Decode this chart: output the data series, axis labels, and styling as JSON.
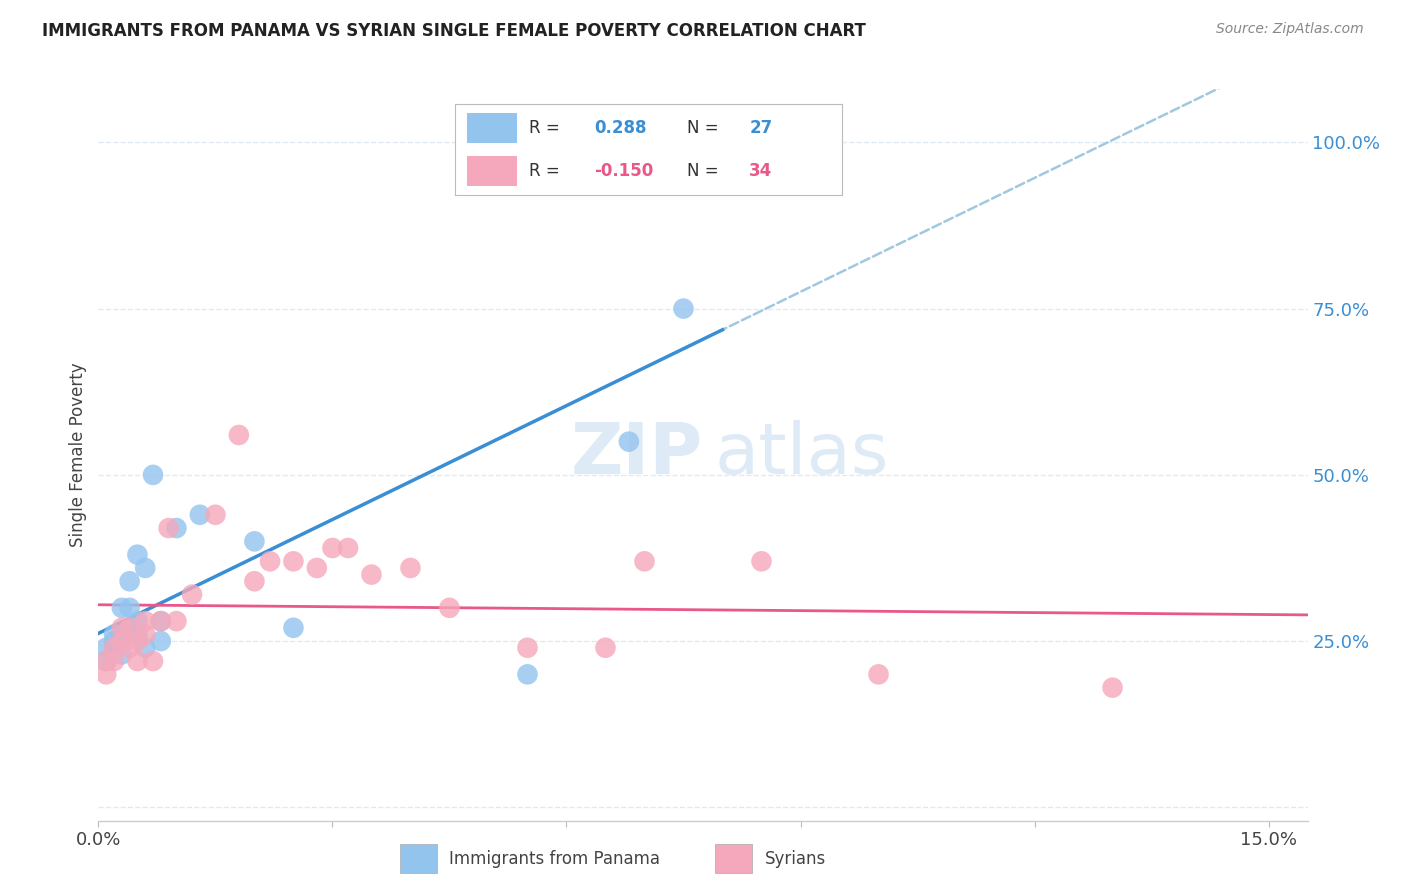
{
  "title": "IMMIGRANTS FROM PANAMA VS SYRIAN SINGLE FEMALE POVERTY CORRELATION CHART",
  "source": "Source: ZipAtlas.com",
  "ylabel": "Single Female Poverty",
  "legend_label1": "Immigrants from Panama",
  "legend_label2": "Syrians",
  "R1": "0.288",
  "N1": "27",
  "R2": "-0.150",
  "N2": "34",
  "color1": "#93C4EE",
  "color2": "#F5A8BB",
  "line_color1": "#3A8FD4",
  "line_color2": "#E85888",
  "dashed_line_color": "#A0C8E0",
  "watermark_zip": "ZIP",
  "watermark_atlas": "atlas",
  "background_color": "#FFFFFF",
  "grid_color": "#E0EAF4",
  "panama_x": [
    0.001,
    0.001,
    0.002,
    0.002,
    0.002,
    0.003,
    0.003,
    0.003,
    0.004,
    0.004,
    0.004,
    0.005,
    0.005,
    0.005,
    0.006,
    0.006,
    0.007,
    0.008,
    0.008,
    0.01,
    0.013,
    0.02,
    0.025,
    0.055,
    0.068,
    0.075,
    0.08
  ],
  "panama_y": [
    0.22,
    0.24,
    0.24,
    0.25,
    0.26,
    0.23,
    0.26,
    0.3,
    0.27,
    0.3,
    0.34,
    0.26,
    0.28,
    0.38,
    0.24,
    0.36,
    0.5,
    0.25,
    0.28,
    0.42,
    0.44,
    0.4,
    0.27,
    0.2,
    0.55,
    0.75,
    1.0
  ],
  "syrian_x": [
    0.001,
    0.001,
    0.002,
    0.002,
    0.003,
    0.003,
    0.004,
    0.004,
    0.005,
    0.005,
    0.006,
    0.006,
    0.007,
    0.008,
    0.009,
    0.01,
    0.012,
    0.015,
    0.018,
    0.02,
    0.022,
    0.025,
    0.028,
    0.03,
    0.032,
    0.035,
    0.04,
    0.045,
    0.055,
    0.065,
    0.07,
    0.085,
    0.1,
    0.13
  ],
  "syrian_y": [
    0.2,
    0.22,
    0.22,
    0.24,
    0.25,
    0.27,
    0.24,
    0.27,
    0.22,
    0.25,
    0.26,
    0.28,
    0.22,
    0.28,
    0.42,
    0.28,
    0.32,
    0.44,
    0.56,
    0.34,
    0.37,
    0.37,
    0.36,
    0.39,
    0.39,
    0.35,
    0.36,
    0.3,
    0.24,
    0.24,
    0.37,
    0.37,
    0.2,
    0.18
  ],
  "xlim": [
    0.0,
    0.155
  ],
  "ylim": [
    -0.02,
    1.08
  ],
  "x_ticks": [
    0.0,
    0.03,
    0.06,
    0.09,
    0.12,
    0.15
  ],
  "x_tick_labels": [
    "0.0%",
    "",
    "",
    "",
    "",
    "15.0%"
  ],
  "y_ticks": [
    0.0,
    0.25,
    0.5,
    0.75,
    1.0
  ],
  "y_tick_labels": [
    "",
    "25.0%",
    "50.0%",
    "75.0%",
    "100.0%"
  ]
}
